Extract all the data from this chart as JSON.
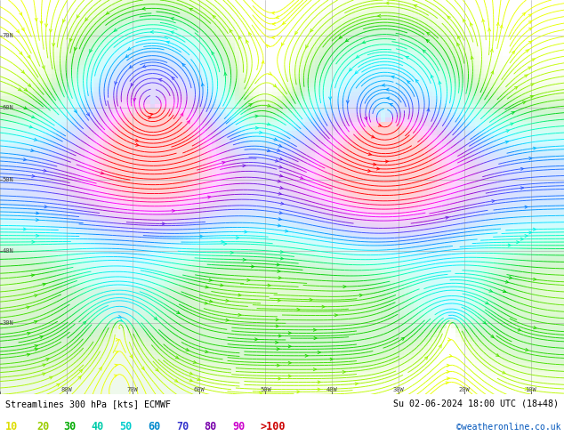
{
  "title_left": "Streamlines 300 hPa [kts] ECMWF",
  "title_right": "Su 02-06-2024 18:00 UTC (18+48)",
  "colorbar_labels": [
    "10",
    "20",
    "30",
    "40",
    "50",
    "60",
    "70",
    "80",
    "90",
    ">100"
  ],
  "watermark": "©weatheronline.co.uk",
  "figsize": [
    6.34,
    4.9
  ],
  "dpi": 100,
  "xlim": [
    -90,
    -5
  ],
  "ylim": [
    20,
    75
  ],
  "speed_colors": [
    [
      0,
      "#ffff00"
    ],
    [
      10,
      "#ccff00"
    ],
    [
      20,
      "#88ee00"
    ],
    [
      30,
      "#00cc00"
    ],
    [
      40,
      "#00ffaa"
    ],
    [
      50,
      "#00eeff"
    ],
    [
      60,
      "#0088ff"
    ],
    [
      70,
      "#4444ff"
    ],
    [
      80,
      "#9900cc"
    ],
    [
      90,
      "#ff00ff"
    ],
    [
      110,
      "#ff0000"
    ]
  ],
  "vmin": 0,
  "vmax": 110,
  "cb_text_colors": [
    "#dddd00",
    "#99cc00",
    "#00aa00",
    "#00ccaa",
    "#00cccc",
    "#0088cc",
    "#3333cc",
    "#7700aa",
    "#cc00cc",
    "#cc0000"
  ],
  "bg_color": "#f5f5f5",
  "land_color": "#d8d8d8",
  "grid_color": "#aaaaaa"
}
